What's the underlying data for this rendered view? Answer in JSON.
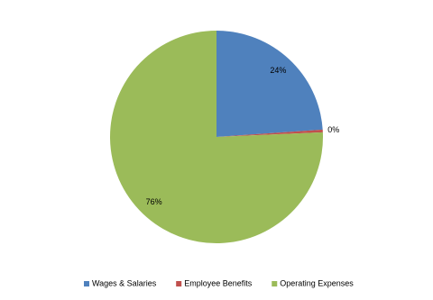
{
  "chart_data": {
    "type": "pie",
    "categories": [
      "Wages & Salaries",
      "Employee Benefits",
      "Operating Expenses"
    ],
    "values": [
      24,
      0.4,
      76
    ],
    "value_labels": [
      "24%",
      "0%",
      "76%"
    ],
    "colors": [
      "#4f81bd",
      "#c0504d",
      "#9bbb59"
    ],
    "legend": "bottom"
  }
}
